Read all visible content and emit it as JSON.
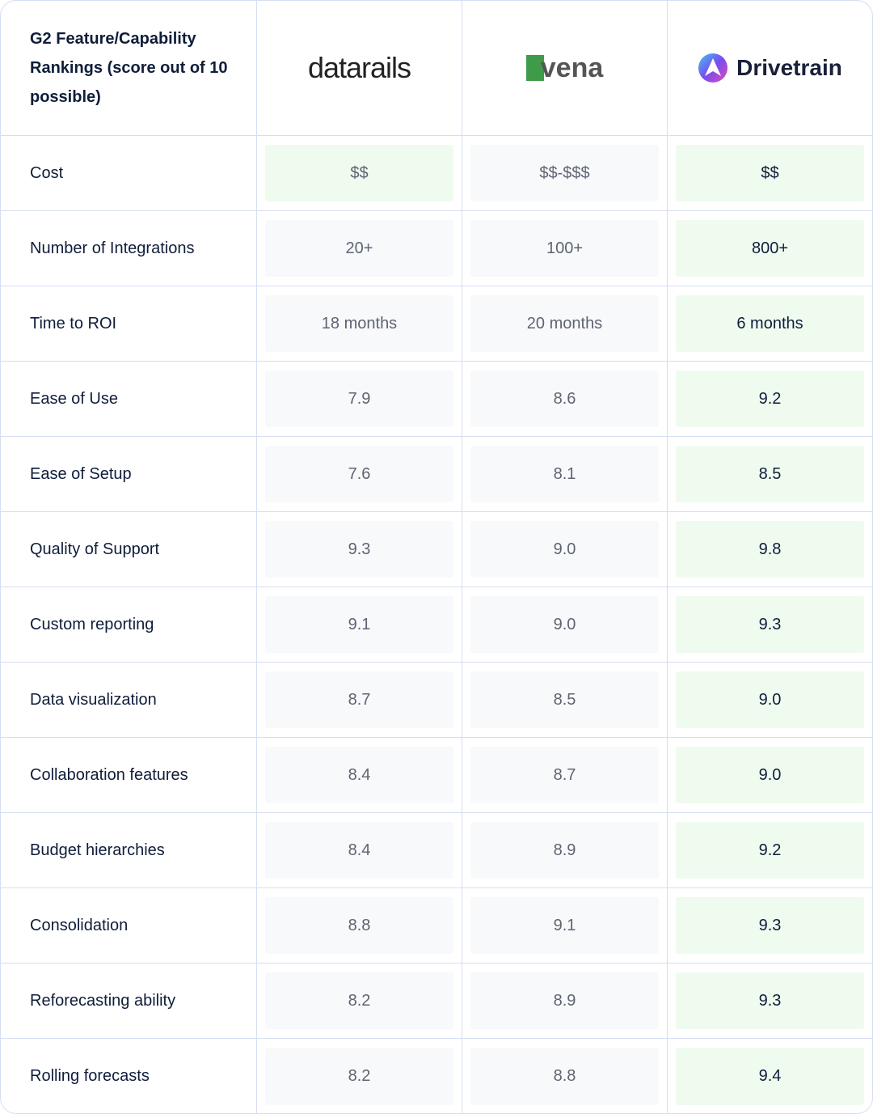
{
  "header": {
    "title": "G2 Feature/Capability Rankings (score out of 10 possible)",
    "vendors": [
      "datarails",
      "vena",
      "Drivetrain"
    ]
  },
  "table": {
    "rows": [
      {
        "label": "Cost",
        "values": [
          "$$",
          "$$-$$$",
          "$$"
        ]
      },
      {
        "label": "Number of Integrations",
        "values": [
          "20+",
          "100+",
          "800+"
        ]
      },
      {
        "label": "Time to ROI",
        "values": [
          "18 months",
          "20 months",
          "6 months"
        ]
      },
      {
        "label": "Ease of Use",
        "values": [
          "7.9",
          "8.6",
          "9.2"
        ]
      },
      {
        "label": "Ease of Setup",
        "values": [
          "7.6",
          "8.1",
          "8.5"
        ]
      },
      {
        "label": "Quality of Support",
        "values": [
          "9.3",
          "9.0",
          "9.8"
        ]
      },
      {
        "label": "Custom reporting",
        "values": [
          "9.1",
          "9.0",
          "9.3"
        ]
      },
      {
        "label": "Data visualization",
        "values": [
          "8.7",
          "8.5",
          "9.0"
        ]
      },
      {
        "label": "Collaboration features",
        "values": [
          "8.4",
          "8.7",
          "9.0"
        ]
      },
      {
        "label": "Budget hierarchies",
        "values": [
          "8.4",
          "8.9",
          "9.2"
        ]
      },
      {
        "label": "Consolidation",
        "values": [
          "8.8",
          "9.1",
          "9.3"
        ]
      },
      {
        "label": "Reforecasting ability",
        "values": [
          "8.2",
          "8.9",
          "9.3"
        ]
      },
      {
        "label": "Rolling forecasts",
        "values": [
          "8.2",
          "8.8",
          "9.4"
        ]
      }
    ]
  }
}
